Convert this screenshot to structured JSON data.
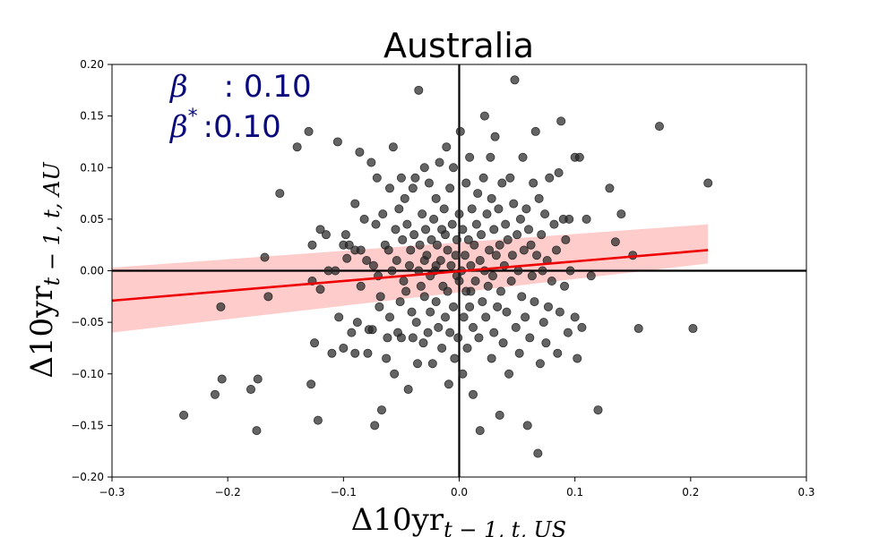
{
  "chart_data": {
    "type": "scatter",
    "title": "Australia",
    "xlabel": {
      "base": "Δ10yr",
      "sub": "t − 1, t, US"
    },
    "ylabel": {
      "base": "Δ10yr",
      "sub": "t − 1, t, AU"
    },
    "xlim": [
      -0.3,
      0.3
    ],
    "ylim": [
      -0.2,
      0.2
    ],
    "xticks": [
      -0.3,
      -0.2,
      -0.1,
      0.0,
      0.1,
      0.2,
      0.3
    ],
    "xtick_labels": [
      "−0.3",
      "−0.2",
      "−0.1",
      "0.0",
      "0.1",
      "0.2",
      "0.3"
    ],
    "yticks": [
      -0.2,
      -0.15,
      -0.1,
      -0.05,
      0.0,
      0.05,
      0.1,
      0.15,
      0.2
    ],
    "ytick_labels": [
      "−0.20",
      "−0.15",
      "−0.10",
      "−0.05",
      "0.00",
      "0.05",
      "0.10",
      "0.15",
      "0.20"
    ],
    "grid": false,
    "annotations": [
      {
        "symbol": "β",
        "sup": "",
        "text": ": 0.10"
      },
      {
        "symbol": "β",
        "sup": "*",
        "text": ":0.10"
      }
    ],
    "regression": {
      "x": [
        -0.3,
        0.215
      ],
      "y": [
        -0.029,
        0.02
      ],
      "band_lower": [
        -0.06,
        0.007
      ],
      "band_upper": [
        0.003,
        0.045
      ],
      "line_color": "#ee0000",
      "band_color": "#ffcccc"
    },
    "marker_color": "#222222",
    "points": [
      [
        -0.238,
        -0.14
      ],
      [
        -0.211,
        -0.12
      ],
      [
        -0.205,
        -0.105
      ],
      [
        -0.206,
        -0.035
      ],
      [
        -0.18,
        -0.115
      ],
      [
        -0.175,
        -0.155
      ],
      [
        -0.174,
        -0.105
      ],
      [
        -0.168,
        0.013
      ],
      [
        -0.165,
        -0.025
      ],
      [
        -0.155,
        0.075
      ],
      [
        -0.14,
        0.12
      ],
      [
        -0.13,
        0.135
      ],
      [
        -0.128,
        -0.11
      ],
      [
        -0.127,
        -0.01
      ],
      [
        -0.127,
        0.025
      ],
      [
        -0.125,
        -0.07
      ],
      [
        -0.122,
        -0.145
      ],
      [
        -0.12,
        -0.018
      ],
      [
        -0.12,
        0.04
      ],
      [
        -0.115,
        0.035
      ],
      [
        -0.113,
        0.0
      ],
      [
        -0.11,
        -0.08
      ],
      [
        -0.107,
        0.0
      ],
      [
        -0.105,
        0.125
      ],
      [
        -0.104,
        -0.045
      ],
      [
        -0.1,
        -0.075
      ],
      [
        -0.1,
        0.025
      ],
      [
        -0.098,
        0.035
      ],
      [
        -0.097,
        0.012
      ],
      [
        -0.095,
        0.025
      ],
      [
        -0.093,
        -0.06
      ],
      [
        -0.09,
        -0.08
      ],
      [
        -0.09,
        0.02
      ],
      [
        -0.09,
        0.065
      ],
      [
        -0.088,
        -0.05
      ],
      [
        -0.086,
        0.115
      ],
      [
        -0.085,
        0.02
      ],
      [
        -0.085,
        -0.015
      ],
      [
        -0.082,
        0.05
      ],
      [
        -0.08,
        0.01
      ],
      [
        -0.079,
        -0.08
      ],
      [
        -0.078,
        -0.057
      ],
      [
        -0.076,
        0.105
      ],
      [
        -0.075,
        -0.057
      ],
      [
        -0.074,
        0.005
      ],
      [
        -0.073,
        -0.15
      ],
      [
        -0.072,
        0.045
      ],
      [
        -0.071,
        0.09
      ],
      [
        -0.07,
        -0.005
      ],
      [
        -0.069,
        -0.035
      ],
      [
        -0.068,
        -0.025
      ],
      [
        -0.067,
        -0.135
      ],
      [
        -0.066,
        0.055
      ],
      [
        -0.064,
        0.025
      ],
      [
        -0.063,
        -0.085
      ],
      [
        -0.062,
        -0.065
      ],
      [
        -0.061,
        0.02
      ],
      [
        -0.06,
        0.08
      ],
      [
        -0.06,
        -0.045
      ],
      [
        -0.058,
        0.0
      ],
      [
        -0.057,
        0.12
      ],
      [
        -0.056,
        -0.1
      ],
      [
        -0.055,
        0.04
      ],
      [
        -0.054,
        0.01
      ],
      [
        -0.053,
        -0.06
      ],
      [
        -0.052,
        0.06
      ],
      [
        -0.051,
        -0.03
      ],
      [
        -0.05,
        0.09
      ],
      [
        -0.05,
        -0.065
      ],
      [
        -0.049,
        0.03
      ],
      [
        -0.048,
        -0.01
      ],
      [
        -0.047,
        0.07
      ],
      [
        -0.046,
        -0.02
      ],
      [
        -0.045,
        0.045
      ],
      [
        -0.044,
        -0.115
      ],
      [
        -0.043,
        0.005
      ],
      [
        -0.042,
        0.02
      ],
      [
        -0.041,
        -0.04
      ],
      [
        -0.04,
        -0.065
      ],
      [
        -0.04,
        0.08
      ],
      [
        -0.039,
        0.035
      ],
      [
        -0.038,
        0.09
      ],
      [
        -0.037,
        -0.05
      ],
      [
        -0.036,
        -0.09
      ],
      [
        -0.035,
        0.0
      ],
      [
        -0.035,
        0.175
      ],
      [
        -0.034,
        0.025
      ],
      [
        -0.033,
        -0.015
      ],
      [
        -0.032,
        0.055
      ],
      [
        -0.031,
        -0.07
      ],
      [
        -0.03,
        0.1
      ],
      [
        -0.03,
        -0.025
      ],
      [
        -0.029,
        0.04
      ],
      [
        -0.028,
        0.015
      ],
      [
        -0.027,
        -0.06
      ],
      [
        -0.026,
        0.085
      ],
      [
        -0.025,
        -0.005
      ],
      [
        -0.025,
        -0.04
      ],
      [
        -0.024,
        0.03
      ],
      [
        -0.023,
        -0.09
      ],
      [
        -0.022,
        0.05
      ],
      [
        -0.021,
        0.0
      ],
      [
        -0.02,
        0.07
      ],
      [
        -0.02,
        -0.03
      ],
      [
        -0.019,
        0.025
      ],
      [
        -0.018,
        -0.055
      ],
      [
        -0.017,
        0.105
      ],
      [
        -0.016,
        0.01
      ],
      [
        -0.015,
        -0.075
      ],
      [
        -0.015,
        0.04
      ],
      [
        -0.014,
        -0.015
      ],
      [
        -0.013,
        0.06
      ],
      [
        -0.012,
        -0.045
      ],
      [
        -0.012,
        0.035
      ],
      [
        -0.011,
        0.12
      ],
      [
        -0.01,
        -0.02
      ],
      [
        -0.01,
        0.02
      ],
      [
        -0.009,
        -0.11
      ],
      [
        -0.008,
        0.08
      ],
      [
        -0.008,
        -0.06
      ],
      [
        -0.007,
        0.005
      ],
      [
        -0.006,
        0.045
      ],
      [
        -0.005,
        -0.035
      ],
      [
        -0.005,
        0.1
      ],
      [
        -0.004,
        -0.085
      ],
      [
        -0.003,
        0.015
      ],
      [
        -0.002,
        -0.005
      ],
      [
        -0.002,
        0.03
      ],
      [
        -0.001,
        -0.065
      ],
      [
        0.0,
        0.055
      ],
      [
        0.0,
        -0.01
      ],
      [
        0.001,
        0.135
      ],
      [
        0.002,
        0.0
      ],
      [
        0.003,
        -0.1
      ],
      [
        0.003,
        0.04
      ],
      [
        0.004,
        -0.045
      ],
      [
        0.005,
        0.015
      ],
      [
        0.006,
        -0.02
      ],
      [
        0.006,
        0.085
      ],
      [
        0.007,
        -0.075
      ],
      [
        0.008,
        0.03
      ],
      [
        0.009,
        0.11
      ],
      [
        0.009,
        -0.035
      ],
      [
        0.01,
        0.005
      ],
      [
        0.011,
        0.06
      ],
      [
        0.012,
        -0.055
      ],
      [
        0.012,
        -0.12
      ],
      [
        0.013,
        0.025
      ],
      [
        0.014,
        -0.01
      ],
      [
        0.015,
        0.045
      ],
      [
        0.016,
        0.075
      ],
      [
        0.017,
        -0.065
      ],
      [
        0.018,
        0.01
      ],
      [
        0.018,
        -0.155
      ],
      [
        0.019,
        0.035
      ],
      [
        0.02,
        -0.03
      ],
      [
        0.021,
        0.09
      ],
      [
        0.022,
        0.0
      ],
      [
        0.022,
        0.15
      ],
      [
        0.023,
        -0.045
      ],
      [
        0.024,
        0.055
      ],
      [
        0.025,
        -0.015
      ],
      [
        0.026,
        0.02
      ],
      [
        0.027,
        0.11
      ],
      [
        0.028,
        -0.085
      ],
      [
        0.028,
        0.07
      ],
      [
        0.029,
        -0.005
      ],
      [
        0.03,
        0.04
      ],
      [
        0.03,
        -0.06
      ],
      [
        0.031,
        0.13
      ],
      [
        0.032,
        0.015
      ],
      [
        0.033,
        -0.035
      ],
      [
        0.034,
        0.06
      ],
      [
        0.035,
        -0.14
      ],
      [
        0.035,
        0.025
      ],
      [
        0.036,
        -0.02
      ],
      [
        0.037,
        0.085
      ],
      [
        0.038,
        -0.07
      ],
      [
        0.039,
        0.005
      ],
      [
        0.04,
        0.045
      ],
      [
        0.041,
        -0.04
      ],
      [
        0.042,
        0.03
      ],
      [
        0.043,
        -0.1
      ],
      [
        0.044,
        0.09
      ],
      [
        0.045,
        -0.01
      ],
      [
        0.046,
        0.015
      ],
      [
        0.047,
        0.065
      ],
      [
        0.048,
        0.185
      ],
      [
        0.049,
        -0.055
      ],
      [
        0.05,
        0.035
      ],
      [
        0.051,
        0.0
      ],
      [
        0.052,
        -0.08
      ],
      [
        0.053,
        0.05
      ],
      [
        0.054,
        -0.025
      ],
      [
        0.055,
        0.11
      ],
      [
        0.056,
        0.02
      ],
      [
        0.057,
        -0.045
      ],
      [
        0.058,
        0.06
      ],
      [
        0.059,
        -0.15
      ],
      [
        0.06,
        0.04
      ],
      [
        0.061,
        -0.065
      ],
      [
        0.062,
        0.025
      ],
      [
        0.063,
        -0.005
      ],
      [
        0.064,
        0.085
      ],
      [
        0.065,
        -0.03
      ],
      [
        0.066,
        0.135
      ],
      [
        0.067,
        0.015
      ],
      [
        0.068,
        -0.177
      ],
      [
        0.069,
        0.07
      ],
      [
        0.07,
        -0.09
      ],
      [
        0.071,
        0.035
      ],
      [
        0.072,
        0.0
      ],
      [
        0.073,
        -0.05
      ],
      [
        0.074,
        0.055
      ],
      [
        0.075,
        -0.07
      ],
      [
        0.076,
        0.01
      ],
      [
        0.077,
        -0.035
      ],
      [
        0.078,
        0.09
      ],
      [
        0.08,
        -0.01
      ],
      [
        0.082,
        0.045
      ],
      [
        0.084,
        0.02
      ],
      [
        0.085,
        -0.08
      ],
      [
        0.086,
        0.095
      ],
      [
        0.087,
        -0.04
      ],
      [
        0.088,
        0.145
      ],
      [
        0.09,
        0.05
      ],
      [
        0.091,
        -0.015
      ],
      [
        0.092,
        0.03
      ],
      [
        0.094,
        -0.06
      ],
      [
        0.095,
        0.05
      ],
      [
        0.096,
        0.0
      ],
      [
        0.1,
        0.11
      ],
      [
        0.1,
        -0.045
      ],
      [
        0.102,
        -0.085
      ],
      [
        0.104,
        0.11
      ],
      [
        0.106,
        -0.055
      ],
      [
        0.11,
        0.05
      ],
      [
        0.114,
        -0.005
      ],
      [
        0.12,
        -0.135
      ],
      [
        0.13,
        0.08
      ],
      [
        0.135,
        0.028
      ],
      [
        0.14,
        0.055
      ],
      [
        0.15,
        0.015
      ],
      [
        0.155,
        -0.056
      ],
      [
        0.173,
        0.14
      ],
      [
        0.202,
        -0.056
      ],
      [
        0.215,
        0.085
      ],
      [
        -0.02,
        0.005
      ],
      [
        0.01,
        -0.02
      ],
      [
        -0.03,
        0.01
      ]
    ]
  }
}
